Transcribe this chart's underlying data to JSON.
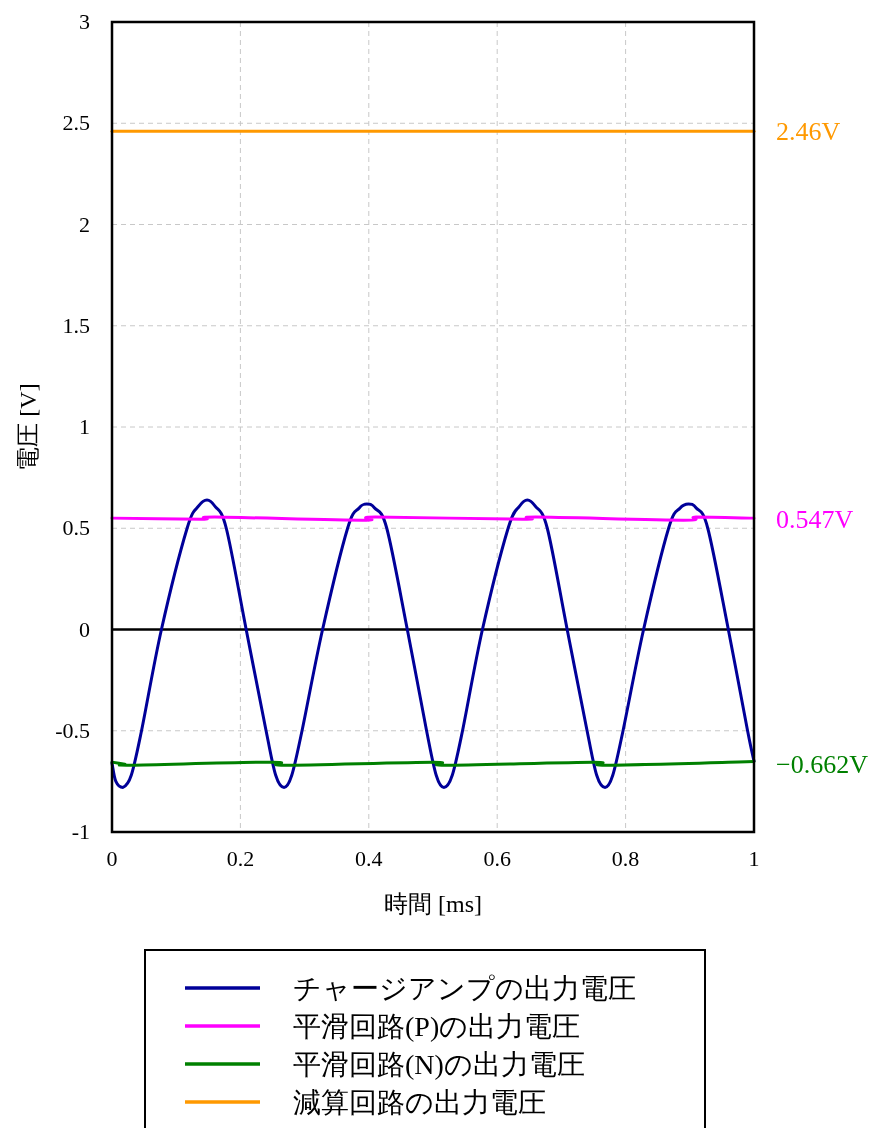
{
  "chart_data": {
    "type": "line",
    "xlabel": "時間 [ms]",
    "ylabel": "電圧 [V]",
    "xlim": [
      0,
      1
    ],
    "xticks": [
      0,
      0.2,
      0.4,
      0.6,
      0.8,
      1
    ],
    "ylim": [
      -1,
      3
    ],
    "yticks": [
      -1,
      -0.5,
      0,
      0.5,
      1,
      1.5,
      2,
      2.5,
      3
    ],
    "grid": true,
    "legend": "bottom",
    "line_style": "solid",
    "ref_lines": [
      {
        "axis": "y",
        "value": 0,
        "color": "#000000"
      }
    ],
    "annotations": [
      "2.46V",
      "0.547V",
      "−0.662V"
    ],
    "series": [
      {
        "name": "チャージアンプの出力電圧",
        "color": "#000099",
        "x": [
          0,
          0.006,
          0.017,
          0.03,
          0.046,
          0.077,
          0.117,
          0.135,
          0.148,
          0.16,
          0.178,
          0.209,
          0.24,
          0.255,
          0.268,
          0.28,
          0.296,
          0.328,
          0.367,
          0.385,
          0.397,
          0.409,
          0.428,
          0.46,
          0.49,
          0.505,
          0.517,
          0.53,
          0.546,
          0.577,
          0.617,
          0.635,
          0.647,
          0.659,
          0.678,
          0.709,
          0.74,
          0.755,
          0.768,
          0.78,
          0.796,
          0.828,
          0.867,
          0.885,
          0.898,
          0.91,
          0.928,
          0.96,
          0.99,
          1
        ],
        "values": [
          -0.66,
          -0.75,
          -0.78,
          -0.72,
          -0.5,
          0,
          0.5,
          0.61,
          0.64,
          0.61,
          0.5,
          0,
          -0.5,
          -0.72,
          -0.78,
          -0.72,
          -0.5,
          0,
          0.5,
          0.6,
          0.62,
          0.6,
          0.5,
          0,
          -0.5,
          -0.72,
          -0.78,
          -0.72,
          -0.5,
          0,
          0.5,
          0.61,
          0.64,
          0.61,
          0.5,
          0,
          -0.5,
          -0.72,
          -0.78,
          -0.72,
          -0.5,
          0,
          0.5,
          0.6,
          0.62,
          0.6,
          0.5,
          0,
          -0.5,
          -0.65
        ]
      },
      {
        "name": "平滑回路(P)の出力電圧",
        "color": "#ff00ff",
        "x": [
          0,
          0.14,
          0.16,
          0.39,
          0.41,
          0.64,
          0.66,
          0.89,
          0.91,
          1
        ],
        "values": [
          0.55,
          0.545,
          0.555,
          0.54,
          0.555,
          0.545,
          0.555,
          0.54,
          0.555,
          0.55
        ]
      },
      {
        "name": "平滑回路(N)の出力電圧",
        "color": "#008000",
        "x": [
          0,
          0.02,
          0.03,
          0.25,
          0.27,
          0.5,
          0.52,
          0.75,
          0.77,
          1
        ],
        "values": [
          -0.655,
          -0.665,
          -0.67,
          -0.655,
          -0.67,
          -0.655,
          -0.67,
          -0.655,
          -0.67,
          -0.652
        ]
      },
      {
        "name": "減算回路の出力電圧",
        "color": "#ff9900",
        "x": [
          0,
          1
        ],
        "values": [
          2.46,
          2.46
        ]
      }
    ]
  }
}
